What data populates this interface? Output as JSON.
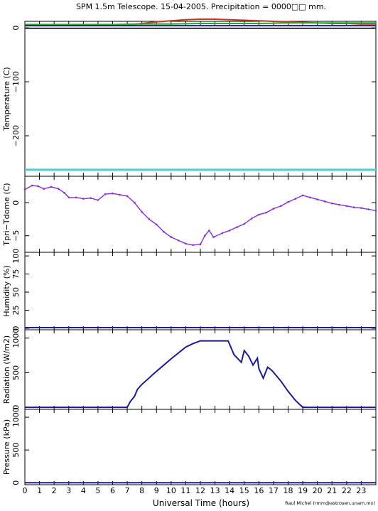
{
  "title": "SPM 1.5m Telescope. 15-04-2005. Precipitation = 0000□□ mm.",
  "credit": "Raul Michel (rmm@astrosen.unam.mx)",
  "chart_data": [
    {
      "type": "line",
      "ylabel": "Temperature (C)",
      "ylim": [
        -275,
        12
      ],
      "yticks": [
        0,
        -100,
        -200
      ],
      "yticklabels": [
        "0",
        "−100",
        "−200"
      ],
      "series": [
        {
          "color": "#c0392b",
          "x": [
            0,
            2,
            4,
            6,
            7,
            8,
            9,
            10,
            11,
            12,
            13,
            14,
            15,
            16,
            17,
            18,
            19,
            20,
            21,
            22,
            23,
            24
          ],
          "y": [
            5,
            5,
            5,
            5,
            5,
            8,
            11,
            13,
            15,
            16,
            16,
            15,
            14,
            13,
            12,
            11,
            10,
            9,
            8,
            8,
            7,
            7
          ]
        },
        {
          "color": "#20b020",
          "x": [
            0,
            2,
            4,
            6,
            8,
            10,
            12,
            14,
            16,
            18,
            20,
            22,
            24
          ],
          "y": [
            6,
            6,
            6,
            6,
            7,
            7,
            8,
            8,
            8,
            9,
            9,
            9,
            9
          ]
        },
        {
          "color": "#1a1aa0",
          "x": [
            0,
            4,
            8,
            12,
            16,
            20,
            24
          ],
          "y": [
            4,
            4,
            4,
            4,
            4,
            4,
            4
          ]
        },
        {
          "color": "#333333",
          "x": [
            0,
            24
          ],
          "y": [
            -1,
            -1
          ]
        },
        {
          "color": "#40d0d0",
          "x": [
            0,
            24
          ],
          "y": [
            -263,
            -263
          ]
        }
      ]
    },
    {
      "type": "scatter",
      "ylabel": "Tpri−Tdome (C)",
      "ylim": [
        -7.5,
        4
      ],
      "yticks": [
        0,
        -5
      ],
      "yticklabels": [
        "0",
        "−5"
      ],
      "series": [
        {
          "color": "#8a2be2",
          "x": [
            0,
            0.5,
            0.9,
            1.3,
            1.8,
            2.3,
            2.7,
            3,
            3.5,
            4,
            4.5,
            5,
            5.5,
            6,
            6.5,
            7,
            7.5,
            8,
            8.5,
            9,
            9.5,
            10,
            10.5,
            11,
            11.5,
            12,
            12.3,
            12.6,
            12.9,
            13.5,
            14,
            14.5,
            15,
            15.5,
            16,
            16.5,
            17,
            17.5,
            18,
            18.5,
            19,
            19.5,
            20,
            20.5,
            21,
            21.5,
            22,
            22.5,
            23,
            23.5,
            24
          ],
          "y": [
            2,
            2.6,
            2.5,
            2.1,
            2.4,
            2.1,
            1.5,
            0.8,
            0.8,
            0.6,
            0.7,
            0.4,
            1.3,
            1.4,
            1.2,
            1,
            0,
            -1.4,
            -2.5,
            -3.3,
            -4.4,
            -5.2,
            -5.7,
            -6.2,
            -6.4,
            -6.3,
            -5,
            -4.2,
            -5.2,
            -4.6,
            -4.2,
            -3.7,
            -3.2,
            -2.4,
            -1.8,
            -1.5,
            -0.9,
            -0.5,
            0.1,
            0.6,
            1.1,
            0.8,
            0.5,
            0.2,
            -0.1,
            -0.3,
            -0.5,
            -0.7,
            -0.8,
            -1,
            -1.2
          ]
        }
      ]
    },
    {
      "type": "line",
      "ylabel": "Humidity (%)",
      "ylim": [
        -2,
        105
      ],
      "yticks": [
        0,
        25,
        50,
        75,
        100
      ],
      "yticklabels": [
        "0",
        "25",
        "50",
        "75",
        "100"
      ],
      "series": [
        {
          "color": "#1a1aa0",
          "x": [
            0,
            24
          ],
          "y": [
            1,
            1
          ]
        }
      ]
    },
    {
      "type": "line",
      "ylabel": "Radiation (W/m2)",
      "ylim": [
        -30,
        1120
      ],
      "yticks": [
        0,
        500,
        1000
      ],
      "yticklabels": [
        "0",
        "500",
        "1000"
      ],
      "series": [
        {
          "color": "#1a1aa0",
          "x": [
            0,
            7,
            7.2,
            7.5,
            7.7,
            8,
            9,
            10,
            11,
            11.5,
            12,
            13,
            13.9,
            14,
            14.3,
            14.8,
            15,
            15.3,
            15.6,
            15.9,
            16,
            16.3,
            16.6,
            16.9,
            17.5,
            18,
            18.5,
            19,
            24
          ],
          "y": [
            0,
            0,
            80,
            160,
            260,
            330,
            520,
            700,
            870,
            920,
            960,
            960,
            960,
            910,
            760,
            650,
            820,
            740,
            610,
            710,
            560,
            420,
            580,
            530,
            380,
            230,
            100,
            0,
            0
          ]
        }
      ]
    },
    {
      "type": "line",
      "ylabel": "Pressure (kPa)",
      "ylim": [
        -30,
        1120
      ],
      "yticks": [
        0,
        500,
        1000
      ],
      "yticklabels": [
        "0",
        "500",
        "1000"
      ],
      "series": [
        {
          "color": "#1a1aa0",
          "x": [
            0,
            24
          ],
          "y": [
            0,
            0
          ]
        }
      ]
    }
  ],
  "xaxis": {
    "xlabel": "Universal Time (hours)",
    "xlim": [
      0,
      24
    ],
    "ticklabels": [
      "0",
      "1",
      "2",
      "3",
      "4",
      "5",
      "6",
      "7",
      "8",
      "9",
      "10",
      "11",
      "12",
      "13",
      "14",
      "15",
      "16",
      "17",
      "18",
      "19",
      "20",
      "21",
      "22",
      "23"
    ]
  }
}
